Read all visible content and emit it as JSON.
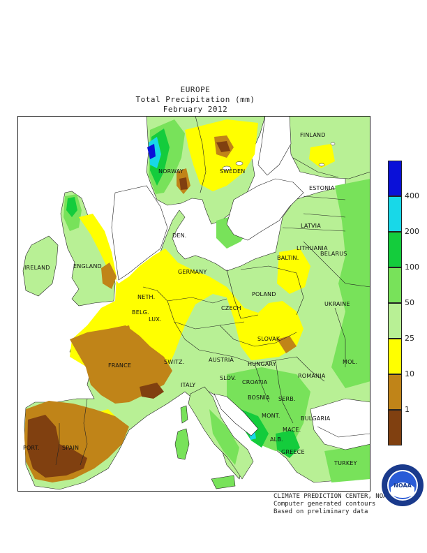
{
  "title": {
    "region": "EUROPE",
    "variable": "Total Precipitation (mm)",
    "period": "February 2012"
  },
  "legend": {
    "bins": [
      {
        "range": "400+",
        "color": "#0a10d8"
      },
      {
        "range": "200-400",
        "color": "#18d8e8"
      },
      {
        "range": "100-200",
        "color": "#14cc3c"
      },
      {
        "range": "50-100",
        "color": "#78e25a"
      },
      {
        "range": "25-50",
        "color": "#b8f095"
      },
      {
        "range": "10-25",
        "color": "#ffff00"
      },
      {
        "range": "1-10",
        "color": "#c08418"
      },
      {
        "range": "0-1",
        "color": "#804010"
      }
    ],
    "tick_labels": [
      "400",
      "200",
      "100",
      "50",
      "25",
      "10",
      "1"
    ]
  },
  "countries": [
    "FINLAND",
    "NORWAY",
    "SWEDEN",
    "ESTONIA",
    "LATVIA",
    "LITHUANIA",
    "DEN.",
    "BALTIN.",
    "IRELAND",
    "ENGLAND",
    "BELARUS",
    "NETH.",
    "GERMANY",
    "POLAND",
    "BELG.",
    "LUX.",
    "CZECH",
    "UKRAINE",
    "SLOVAK",
    "FRANCE",
    "SWITZ.",
    "AUSTRIA",
    "HUNGARY",
    "MOL.",
    "ROMANIA",
    "SLOV.",
    "CROATIA",
    "ITALY",
    "BOSNIA",
    "SERB.",
    "BULGARIA",
    "MONT.",
    "MACE.",
    "ALB.",
    "PORT.",
    "SPAIN",
    "GREECE",
    "TURKEY"
  ],
  "credits": {
    "line1": "CLIMATE PREDICTION CENTER, NOAA",
    "line2": "Computer generated contours",
    "line3": "Based on preliminary data"
  },
  "logo": {
    "text": "NOAA",
    "ring_text": "NATIONAL OCEANIC AND ATMOSPHERIC ADMINISTRATION · U.S. DEPARTMENT OF COMMERCE",
    "colors": {
      "outer": "#1a3a8c",
      "inner": "#2a5bd7",
      "band": "#ffffff"
    }
  }
}
